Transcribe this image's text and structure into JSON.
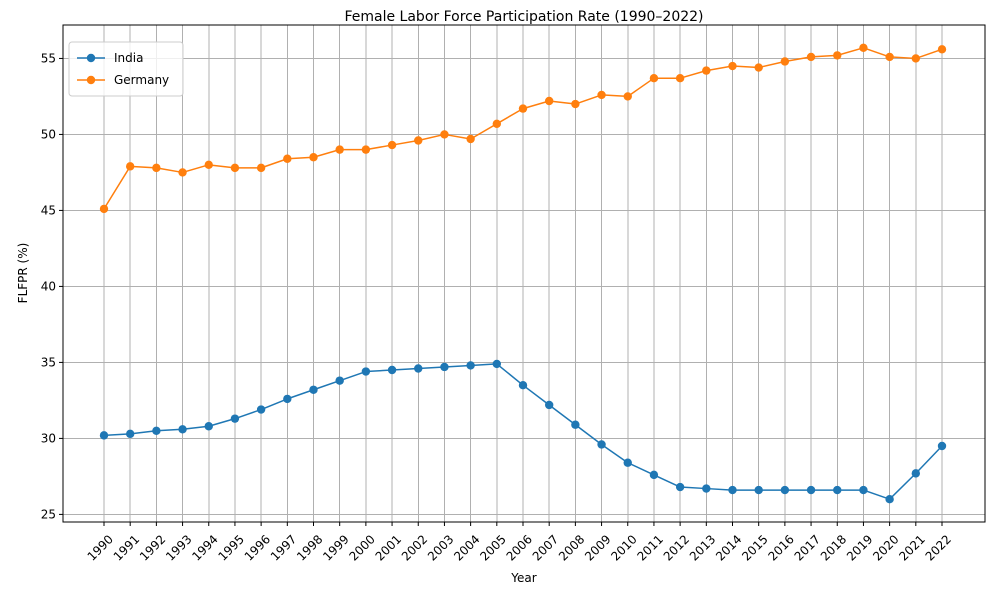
{
  "chart_data": {
    "type": "line",
    "title": "Female Labor Force Participation Rate (1990–2022)",
    "xlabel": "Year",
    "ylabel": "FLFPR (%)",
    "x": [
      "1990",
      "1991",
      "1992",
      "1993",
      "1994",
      "1995",
      "1996",
      "1997",
      "1998",
      "1999",
      "2000",
      "2001",
      "2002",
      "2003",
      "2004",
      "2005",
      "2006",
      "2007",
      "2008",
      "2009",
      "2010",
      "2011",
      "2012",
      "2013",
      "2014",
      "2015",
      "2016",
      "2017",
      "2018",
      "2019",
      "2020",
      "2021",
      "2022"
    ],
    "ylim": [
      24.5,
      57.2
    ],
    "yticks": [
      "25",
      "30",
      "35",
      "40",
      "45",
      "50",
      "55"
    ],
    "grid": true,
    "legend_position": "top-left",
    "series": [
      {
        "name": "India",
        "color": "#1f77b4",
        "values": [
          30.2,
          30.3,
          30.5,
          30.6,
          30.8,
          31.3,
          31.9,
          32.6,
          33.2,
          33.8,
          34.4,
          34.5,
          34.6,
          34.7,
          34.8,
          34.9,
          33.5,
          32.2,
          30.9,
          29.6,
          28.4,
          27.6,
          26.8,
          26.7,
          26.6,
          26.6,
          26.6,
          26.6,
          26.6,
          26.6,
          26.0,
          27.7,
          29.5
        ]
      },
      {
        "name": "Germany",
        "color": "#ff7f0e",
        "values": [
          45.1,
          47.9,
          47.8,
          47.5,
          48.0,
          47.8,
          47.8,
          48.4,
          48.5,
          49.0,
          49.0,
          49.3,
          49.6,
          50.0,
          49.7,
          50.7,
          51.7,
          52.2,
          52.0,
          52.6,
          52.5,
          53.7,
          53.7,
          54.2,
          54.5,
          54.4,
          54.8,
          55.1,
          55.2,
          55.7,
          55.1,
          55.0,
          55.6
        ]
      }
    ]
  }
}
